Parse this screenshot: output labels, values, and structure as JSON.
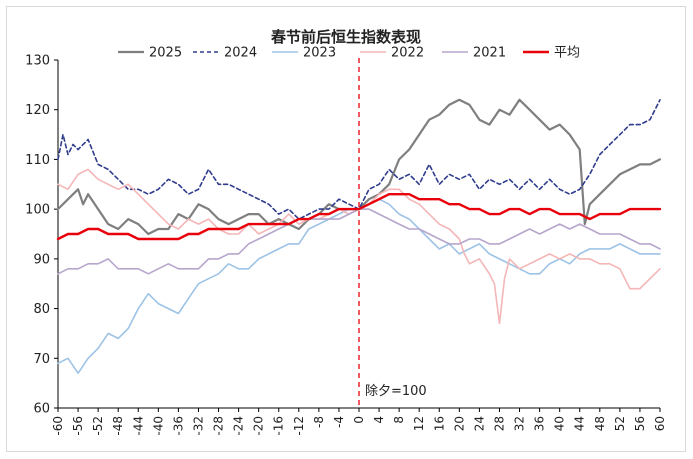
{
  "chart_data": {
    "type": "line",
    "title": "春节前后恒生指数表现",
    "xlabel": "",
    "ylabel": "",
    "xlim": [
      -60,
      60
    ],
    "ylim": [
      60,
      130
    ],
    "yticks": [
      60,
      70,
      80,
      90,
      100,
      110,
      120,
      130
    ],
    "xticks": [
      -60,
      -56,
      -52,
      -48,
      -44,
      -40,
      -36,
      -32,
      -28,
      -24,
      -20,
      -16,
      -12,
      -8,
      -4,
      0,
      4,
      8,
      12,
      16,
      20,
      24,
      28,
      32,
      36,
      40,
      44,
      48,
      52,
      56,
      60
    ],
    "grid": false,
    "legend": "top",
    "annotation": {
      "x": 0,
      "text": "除夕=100",
      "color": "#e8000b"
    },
    "series": [
      {
        "name": "2025",
        "color": "#7f7f7f",
        "style": "solid",
        "width": 2.2,
        "x": [
          -60,
          -58,
          -56,
          -55,
          -54,
          -52,
          -50,
          -48,
          -46,
          -44,
          -42,
          -40,
          -38,
          -36,
          -34,
          -32,
          -30,
          -28,
          -26,
          -24,
          -22,
          -20,
          -18,
          -16,
          -14,
          -12,
          -10,
          -8,
          -6,
          -4,
          -2,
          0,
          2,
          4,
          6,
          8,
          10,
          12,
          14,
          16,
          18,
          20,
          22,
          24,
          26,
          28,
          30,
          32,
          34,
          36,
          38,
          40,
          42,
          44,
          45,
          46,
          48,
          50,
          52,
          54,
          56,
          58,
          60
        ],
        "y": [
          100,
          102,
          104,
          101,
          103,
          100,
          97,
          96,
          98,
          97,
          95,
          96,
          96,
          99,
          98,
          101,
          100,
          98,
          97,
          98,
          99,
          99,
          97,
          98,
          97,
          96,
          98,
          99,
          101,
          100,
          100,
          100,
          102,
          103,
          105,
          110,
          112,
          115,
          118,
          119,
          121,
          122,
          121,
          118,
          117,
          120,
          119,
          122,
          120,
          118,
          116,
          117,
          115,
          112,
          97,
          101,
          103,
          105,
          107,
          108,
          109,
          109,
          110
        ]
      },
      {
        "name": "2024",
        "color": "#2f3c8c",
        "style": "dashed",
        "width": 1.6,
        "x": [
          -60,
          -59,
          -58,
          -57,
          -56,
          -54,
          -52,
          -50,
          -48,
          -46,
          -44,
          -42,
          -40,
          -38,
          -36,
          -34,
          -32,
          -30,
          -28,
          -26,
          -24,
          -22,
          -20,
          -18,
          -16,
          -14,
          -12,
          -10,
          -8,
          -6,
          -4,
          -2,
          0,
          2,
          4,
          6,
          8,
          10,
          12,
          14,
          16,
          18,
          20,
          22,
          24,
          26,
          28,
          30,
          32,
          34,
          36,
          38,
          40,
          42,
          44,
          46,
          48,
          50,
          52,
          54,
          56,
          58,
          60
        ],
        "y": [
          110,
          115,
          111,
          113,
          112,
          114,
          109,
          108,
          106,
          104,
          104,
          103,
          104,
          106,
          105,
          103,
          104,
          108,
          105,
          105,
          104,
          103,
          102,
          101,
          99,
          100,
          98,
          99,
          100,
          100,
          102,
          101,
          100,
          104,
          105,
          108,
          106,
          107,
          105,
          109,
          105,
          107,
          106,
          107,
          104,
          106,
          105,
          106,
          104,
          106,
          104,
          106,
          104,
          103,
          104,
          107,
          111,
          113,
          115,
          117,
          117,
          118,
          122
        ]
      },
      {
        "name": "2023",
        "color": "#9dc3e6",
        "style": "solid",
        "width": 1.6,
        "x": [
          -60,
          -58,
          -56,
          -54,
          -52,
          -50,
          -48,
          -46,
          -44,
          -42,
          -40,
          -38,
          -36,
          -34,
          -32,
          -30,
          -28,
          -26,
          -24,
          -22,
          -20,
          -18,
          -16,
          -14,
          -12,
          -10,
          -8,
          -6,
          -4,
          -2,
          0,
          2,
          4,
          6,
          8,
          10,
          12,
          14,
          16,
          18,
          20,
          22,
          24,
          26,
          28,
          30,
          32,
          34,
          36,
          38,
          40,
          42,
          44,
          46,
          48,
          50,
          52,
          54,
          56,
          58,
          60
        ],
        "y": [
          69,
          70,
          67,
          70,
          72,
          75,
          74,
          76,
          80,
          83,
          81,
          80,
          79,
          82,
          85,
          86,
          87,
          89,
          88,
          88,
          90,
          91,
          92,
          93,
          93,
          96,
          97,
          98,
          99,
          100,
          100,
          101,
          102,
          101,
          99,
          98,
          96,
          94,
          92,
          93,
          91,
          92,
          93,
          91,
          90,
          89,
          88,
          87,
          87,
          89,
          90,
          89,
          91,
          92,
          92,
          92,
          93,
          92,
          91,
          91,
          91
        ]
      },
      {
        "name": "2022",
        "color": "#f4b6b6",
        "style": "solid",
        "width": 1.6,
        "x": [
          -60,
          -58,
          -56,
          -54,
          -52,
          -50,
          -48,
          -46,
          -44,
          -42,
          -40,
          -38,
          -36,
          -34,
          -32,
          -30,
          -28,
          -26,
          -24,
          -22,
          -20,
          -18,
          -16,
          -14,
          -12,
          -10,
          -8,
          -6,
          -4,
          -2,
          0,
          2,
          4,
          6,
          8,
          10,
          12,
          14,
          16,
          18,
          20,
          21,
          22,
          24,
          26,
          27,
          28,
          29,
          30,
          32,
          34,
          36,
          38,
          40,
          42,
          44,
          46,
          48,
          50,
          52,
          54,
          56,
          58,
          60
        ],
        "y": [
          105,
          104,
          107,
          108,
          106,
          105,
          104,
          105,
          103,
          101,
          99,
          97,
          96,
          98,
          97,
          98,
          96,
          95,
          95,
          97,
          95,
          96,
          97,
          99,
          97,
          98,
          98,
          99,
          100,
          99,
          100,
          101,
          103,
          104,
          104,
          102,
          101,
          99,
          97,
          96,
          94,
          91,
          89,
          90,
          87,
          85,
          77,
          86,
          90,
          88,
          89,
          90,
          91,
          90,
          91,
          90,
          90,
          89,
          89,
          88,
          84,
          84,
          86,
          88
        ]
      },
      {
        "name": "2021",
        "color": "#b7a6cc",
        "style": "solid",
        "width": 1.6,
        "x": [
          -60,
          -58,
          -56,
          -54,
          -52,
          -50,
          -48,
          -46,
          -44,
          -42,
          -40,
          -38,
          -36,
          -34,
          -32,
          -30,
          -28,
          -26,
          -24,
          -22,
          -20,
          -18,
          -16,
          -14,
          -12,
          -10,
          -8,
          -6,
          -4,
          -2,
          0,
          2,
          4,
          6,
          8,
          10,
          12,
          14,
          16,
          18,
          20,
          22,
          24,
          26,
          28,
          30,
          32,
          34,
          36,
          38,
          40,
          42,
          44,
          46,
          48,
          50,
          52,
          54,
          56,
          58,
          60
        ],
        "y": [
          87,
          88,
          88,
          89,
          89,
          90,
          88,
          88,
          88,
          87,
          88,
          89,
          88,
          88,
          88,
          90,
          90,
          91,
          91,
          93,
          94,
          95,
          96,
          97,
          98,
          98,
          98,
          98,
          98,
          99,
          100,
          100,
          99,
          98,
          97,
          96,
          96,
          95,
          94,
          93,
          93,
          94,
          94,
          93,
          93,
          94,
          95,
          96,
          95,
          96,
          97,
          96,
          97,
          96,
          95,
          95,
          95,
          94,
          93,
          93,
          92
        ]
      },
      {
        "name": "平均",
        "color": "#e8000b",
        "style": "solid",
        "width": 2.4,
        "x": [
          -60,
          -58,
          -56,
          -54,
          -52,
          -50,
          -48,
          -46,
          -44,
          -42,
          -40,
          -38,
          -36,
          -34,
          -32,
          -30,
          -28,
          -26,
          -24,
          -22,
          -20,
          -18,
          -16,
          -14,
          -12,
          -10,
          -8,
          -6,
          -4,
          -2,
          0,
          2,
          4,
          6,
          8,
          10,
          12,
          14,
          16,
          18,
          20,
          22,
          24,
          26,
          28,
          30,
          32,
          34,
          36,
          38,
          40,
          42,
          44,
          46,
          48,
          50,
          52,
          54,
          56,
          58,
          60
        ],
        "y": [
          94,
          95,
          95,
          96,
          96,
          95,
          95,
          95,
          94,
          94,
          94,
          94,
          94,
          95,
          95,
          96,
          96,
          96,
          96,
          97,
          97,
          97,
          97,
          97,
          98,
          98,
          99,
          99,
          100,
          100,
          100,
          101,
          102,
          103,
          103,
          103,
          102,
          102,
          102,
          101,
          101,
          100,
          100,
          99,
          99,
          100,
          100,
          99,
          100,
          100,
          99,
          99,
          99,
          98,
          99,
          99,
          99,
          100,
          100,
          100,
          100
        ]
      }
    ]
  }
}
